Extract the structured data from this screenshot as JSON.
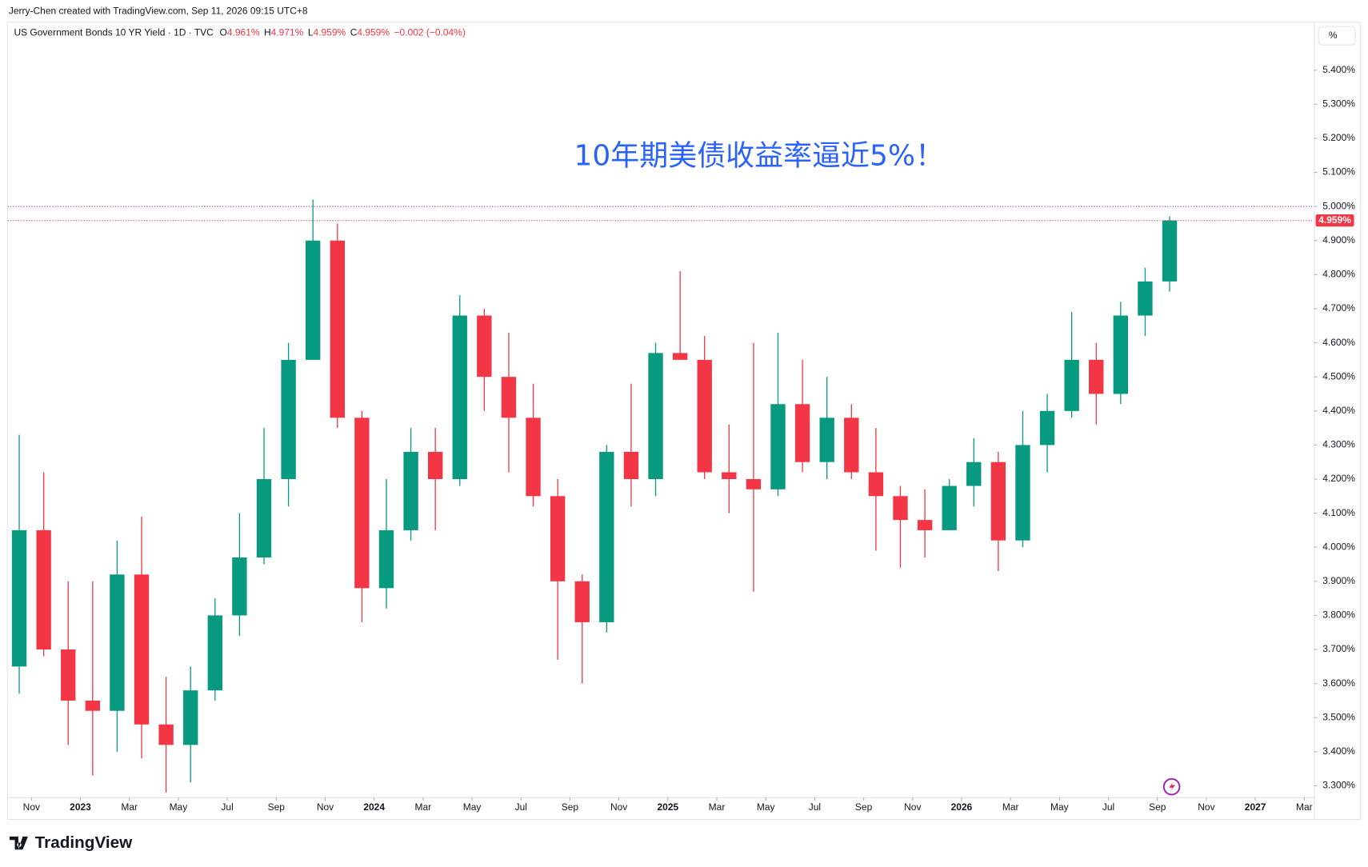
{
  "header": {
    "credit": "Jerry-Chen created with TradingView.com, Sep 11, 2026 09:15 UTC+8",
    "symbol": "US Government Bonds 10 YR Yield · 1D · TVC",
    "ohlc": [
      {
        "label": "O",
        "value": "4.961%"
      },
      {
        "label": "H",
        "value": "4.971%"
      },
      {
        "label": "L",
        "value": "4.959%"
      },
      {
        "label": "C",
        "value": "4.959%"
      }
    ],
    "change": "−0.002 (−0.04%)",
    "unit_button": "%"
  },
  "footer": {
    "brand": "TradingView"
  },
  "chart_data": {
    "type": "candlestick",
    "annotation": "10年期美债收益率逼近5%！",
    "up_color": "#089981",
    "down_color": "#f23645",
    "x": [
      "2022-10",
      "2022-11",
      "2022-12",
      "2023-01",
      "2023-02",
      "2023-03",
      "2023-04",
      "2023-05",
      "2023-06",
      "2023-07",
      "2023-08",
      "2023-09",
      "2023-10",
      "2023-11",
      "2023-12",
      "2024-01",
      "2024-02",
      "2024-03",
      "2024-04",
      "2024-05",
      "2024-06",
      "2024-07",
      "2024-08",
      "2024-09",
      "2024-10",
      "2024-11",
      "2024-12",
      "2025-01",
      "2025-02",
      "2025-03",
      "2025-04",
      "2025-05",
      "2025-06",
      "2025-07",
      "2025-08",
      "2025-09",
      "2025-10",
      "2025-11",
      "2025-12",
      "2026-01",
      "2026-02",
      "2026-03",
      "2026-04",
      "2026-05",
      "2026-06",
      "2026-07",
      "2026-08",
      "2026-09"
    ],
    "open": [
      3.65,
      4.05,
      3.7,
      3.55,
      3.52,
      3.92,
      3.48,
      3.42,
      3.58,
      3.8,
      3.97,
      4.2,
      4.55,
      4.9,
      4.38,
      3.88,
      4.05,
      4.28,
      4.2,
      4.68,
      4.5,
      4.38,
      4.15,
      3.9,
      3.78,
      4.28,
      4.2,
      4.57,
      4.55,
      4.22,
      4.2,
      4.17,
      4.42,
      4.25,
      4.38,
      4.22,
      4.15,
      4.08,
      4.05,
      4.18,
      4.25,
      4.02,
      4.3,
      4.4,
      4.55,
      4.45,
      4.68,
      4.78
    ],
    "high": [
      4.33,
      4.22,
      3.9,
      3.9,
      4.02,
      4.09,
      3.62,
      3.65,
      3.85,
      4.1,
      4.35,
      4.6,
      5.02,
      4.95,
      4.4,
      4.2,
      4.35,
      4.35,
      4.74,
      4.7,
      4.63,
      4.48,
      4.2,
      3.92,
      4.3,
      4.48,
      4.6,
      4.81,
      4.62,
      4.36,
      4.6,
      4.63,
      4.55,
      4.5,
      4.42,
      4.35,
      4.18,
      4.17,
      4.2,
      4.32,
      4.28,
      4.4,
      4.45,
      4.69,
      4.6,
      4.72,
      4.82,
      4.971
    ],
    "low": [
      3.57,
      3.68,
      3.42,
      3.33,
      3.4,
      3.38,
      3.28,
      3.31,
      3.55,
      3.74,
      3.95,
      4.12,
      4.55,
      4.35,
      3.78,
      3.82,
      4.02,
      4.05,
      4.18,
      4.4,
      4.22,
      4.12,
      3.67,
      3.6,
      3.75,
      4.12,
      4.15,
      4.55,
      4.2,
      4.1,
      3.87,
      4.15,
      4.22,
      4.2,
      4.2,
      3.99,
      3.94,
      3.97,
      4.05,
      4.12,
      3.93,
      4.0,
      4.22,
      4.38,
      4.36,
      4.42,
      4.62,
      4.75
    ],
    "close": [
      4.05,
      3.7,
      3.55,
      3.52,
      3.92,
      3.48,
      3.42,
      3.58,
      3.8,
      3.97,
      4.2,
      4.55,
      4.9,
      4.38,
      3.88,
      4.05,
      4.28,
      4.2,
      4.68,
      4.5,
      4.38,
      4.15,
      3.9,
      3.78,
      4.28,
      4.2,
      4.57,
      4.55,
      4.22,
      4.2,
      4.17,
      4.42,
      4.25,
      4.38,
      4.22,
      4.15,
      4.08,
      4.05,
      4.18,
      4.25,
      4.02,
      4.3,
      4.4,
      4.55,
      4.45,
      4.68,
      4.78,
      4.959
    ],
    "last_price_label": "4.959%",
    "reference_line": 5.0,
    "reference_color": "#9c27b0",
    "xlim": [
      "2022-10",
      "2027-04"
    ],
    "xticks": [
      {
        "value": "2022-11",
        "label": "Nov"
      },
      {
        "value": "2023-01",
        "label": "2023"
      },
      {
        "value": "2023-03",
        "label": "Mar"
      },
      {
        "value": "2023-05",
        "label": "May"
      },
      {
        "value": "2023-07",
        "label": "Jul"
      },
      {
        "value": "2023-09",
        "label": "Sep"
      },
      {
        "value": "2023-11",
        "label": "Nov"
      },
      {
        "value": "2024-01",
        "label": "2024"
      },
      {
        "value": "2024-03",
        "label": "Mar"
      },
      {
        "value": "2024-05",
        "label": "May"
      },
      {
        "value": "2024-07",
        "label": "Jul"
      },
      {
        "value": "2024-09",
        "label": "Sep"
      },
      {
        "value": "2024-11",
        "label": "Nov"
      },
      {
        "value": "2025-01",
        "label": "2025"
      },
      {
        "value": "2025-03",
        "label": "Mar"
      },
      {
        "value": "2025-05",
        "label": "May"
      },
      {
        "value": "2025-07",
        "label": "Jul"
      },
      {
        "value": "2025-09",
        "label": "Sep"
      },
      {
        "value": "2025-11",
        "label": "Nov"
      },
      {
        "value": "2026-01",
        "label": "2026"
      },
      {
        "value": "2026-03",
        "label": "Mar"
      },
      {
        "value": "2026-05",
        "label": "May"
      },
      {
        "value": "2026-07",
        "label": "Jul"
      },
      {
        "value": "2026-09",
        "label": "Sep"
      },
      {
        "value": "2026-11",
        "label": "Nov"
      },
      {
        "value": "2027-01",
        "label": "2027"
      },
      {
        "value": "2027-03",
        "label": "Mar"
      }
    ],
    "ylim": [
      3.205,
      5.542
    ],
    "yticks": [
      {
        "value": 3.3,
        "label": "3.300%"
      },
      {
        "value": 3.4,
        "label": "3.400%"
      },
      {
        "value": 3.5,
        "label": "3.500%"
      },
      {
        "value": 3.6,
        "label": "3.600%"
      },
      {
        "value": 3.7,
        "label": "3.700%"
      },
      {
        "value": 3.8,
        "label": "3.800%"
      },
      {
        "value": 3.9,
        "label": "3.900%"
      },
      {
        "value": 4.0,
        "label": "4.000%"
      },
      {
        "value": 4.1,
        "label": "4.100%"
      },
      {
        "value": 4.2,
        "label": "4.200%"
      },
      {
        "value": 4.3,
        "label": "4.300%"
      },
      {
        "value": 4.4,
        "label": "4.400%"
      },
      {
        "value": 4.5,
        "label": "4.500%"
      },
      {
        "value": 4.6,
        "label": "4.600%"
      },
      {
        "value": 4.7,
        "label": "4.700%"
      },
      {
        "value": 4.8,
        "label": "4.800%"
      },
      {
        "value": 4.9,
        "label": "4.900%"
      },
      {
        "value": 5.0,
        "label": "5.000%"
      },
      {
        "value": 5.1,
        "label": "5.100%"
      },
      {
        "value": 5.2,
        "label": "5.200%"
      },
      {
        "value": 5.3,
        "label": "5.300%"
      },
      {
        "value": 5.4,
        "label": "5.400%"
      }
    ]
  }
}
